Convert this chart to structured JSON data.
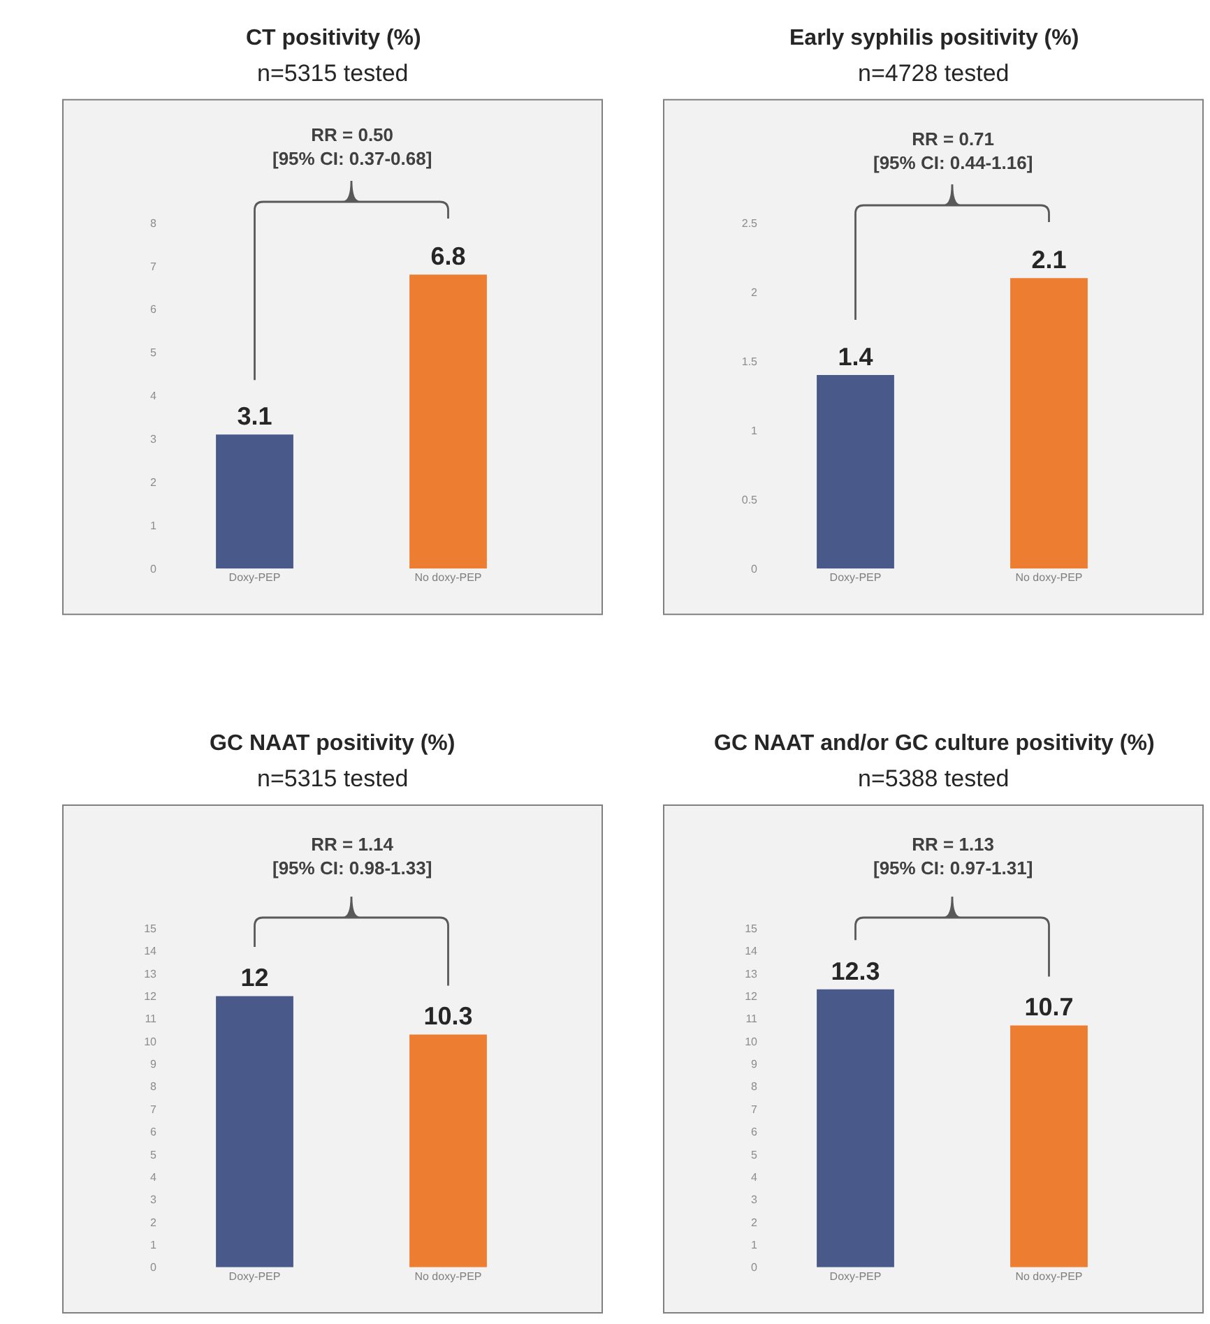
{
  "chart_data": [
    {
      "type": "bar",
      "title": "CT positivity (%)",
      "subtitle": "n=5315 tested",
      "categories": [
        "Doxy-PEP",
        "No doxy-PEP"
      ],
      "values": [
        3.1,
        6.8
      ],
      "colors": [
        "#48598a",
        "#ed7d31"
      ],
      "ylim": [
        0,
        8
      ],
      "yticks": [
        0,
        1,
        2,
        3,
        4,
        5,
        6,
        7,
        8
      ],
      "data_labels": true,
      "annotations": [
        "RR = 0.50\n[95% CI: 0.37-0.68]"
      ]
    },
    {
      "type": "bar",
      "title": "Early syphilis positivity (%)",
      "subtitle": "n=4728 tested",
      "categories": [
        "Doxy-PEP",
        "No doxy-PEP"
      ],
      "values": [
        1.4,
        2.1
      ],
      "colors": [
        "#48598a",
        "#ed7d31"
      ],
      "ylim": [
        0,
        2.5
      ],
      "yticks": [
        0,
        0.5,
        1,
        1.5,
        2,
        2.5
      ],
      "data_labels": true,
      "annotations": [
        "RR = 0.71\n[95% CI: 0.44-1.16]"
      ]
    },
    {
      "type": "bar",
      "title": "GC NAAT positivity (%)",
      "subtitle": "n=5315 tested",
      "categories": [
        "Doxy-PEP",
        "No doxy-PEP"
      ],
      "values": [
        12,
        10.3
      ],
      "colors": [
        "#48598a",
        "#ed7d31"
      ],
      "ylim": [
        0,
        15
      ],
      "yticks": [
        0,
        1,
        2,
        3,
        4,
        5,
        6,
        7,
        8,
        9,
        10,
        11,
        12,
        13,
        14,
        15
      ],
      "data_labels": true,
      "annotations": [
        "RR = 1.14\n[95% CI: 0.98-1.33]"
      ]
    },
    {
      "type": "bar",
      "title": "GC NAAT and/or GC culture positivity (%)",
      "subtitle": "n=5388 tested",
      "categories": [
        "Doxy-PEP",
        "No doxy-PEP"
      ],
      "values": [
        12.3,
        10.7
      ],
      "colors": [
        "#48598a",
        "#ed7d31"
      ],
      "ylim": [
        0,
        15
      ],
      "yticks": [
        0,
        1,
        2,
        3,
        4,
        5,
        6,
        7,
        8,
        9,
        10,
        11,
        12,
        13,
        14,
        15
      ],
      "data_labels": true,
      "annotations": [
        "RR = 1.13\n[95% CI: 0.97-1.31]"
      ]
    }
  ]
}
